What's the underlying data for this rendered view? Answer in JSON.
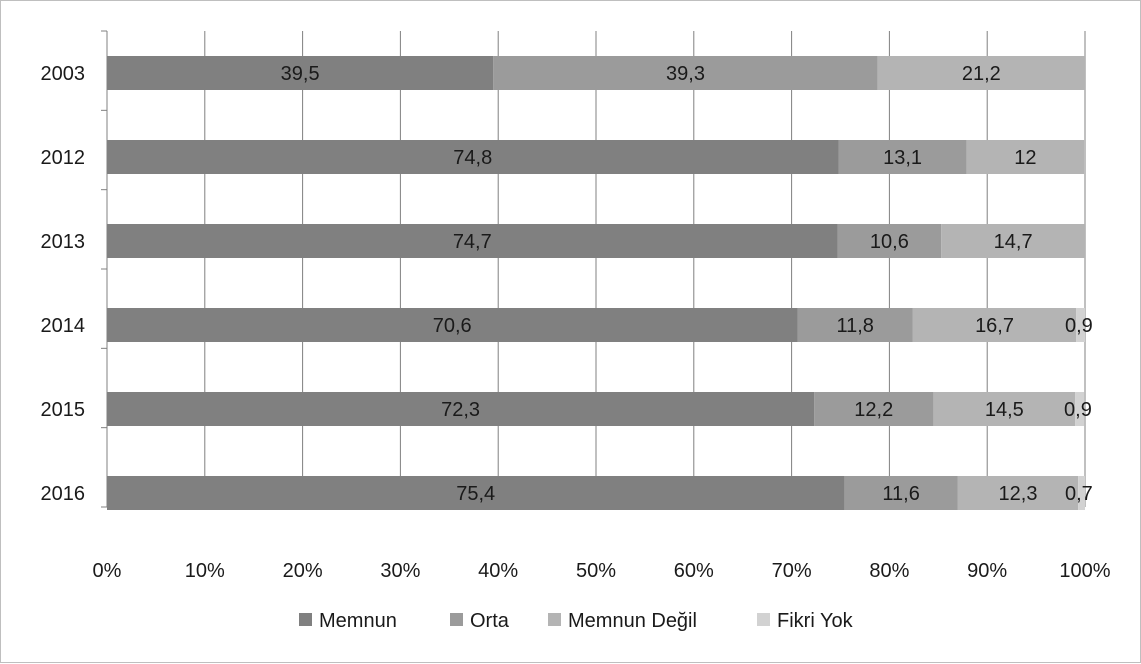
{
  "chart_data": {
    "type": "bar",
    "orientation": "horizontal",
    "stacked": "percent",
    "categories": [
      "2003",
      "2012",
      "2013",
      "2014",
      "2015",
      "2016"
    ],
    "series": [
      {
        "name": "Memnun",
        "color": "#808080",
        "values": [
          39.5,
          74.8,
          74.7,
          70.6,
          72.3,
          75.4
        ],
        "labels": [
          "39,5",
          "74,8",
          "74,7",
          "70,6",
          "72,3",
          "75,4"
        ]
      },
      {
        "name": "Orta",
        "color": "#9b9b9b",
        "values": [
          39.3,
          13.1,
          10.6,
          11.8,
          12.2,
          11.6
        ],
        "labels": [
          "39,3",
          "13,1",
          "10,6",
          "11,8",
          "12,2",
          "11,6"
        ]
      },
      {
        "name": "Memnun Değil",
        "color": "#b4b4b4",
        "values": [
          21.2,
          12,
          14.7,
          16.7,
          14.5,
          12.3
        ],
        "labels": [
          "21,2",
          "12",
          "14,7",
          "16,7",
          "14,5",
          "12,3"
        ]
      },
      {
        "name": "Fikri Yok",
        "color": "#d2d2d2",
        "values": [
          0,
          0,
          0,
          0.9,
          0.9,
          0.7
        ],
        "labels": [
          "",
          "",
          "",
          "0,9",
          "0,9",
          "0,7"
        ]
      }
    ],
    "xlim": [
      0,
      100
    ],
    "x_ticks": [
      "0%",
      "10%",
      "20%",
      "30%",
      "40%",
      "50%",
      "60%",
      "70%",
      "80%",
      "90%",
      "100%"
    ],
    "grid": "vertical",
    "legend_position": "bottom",
    "title": "",
    "xlabel": "",
    "ylabel": ""
  }
}
